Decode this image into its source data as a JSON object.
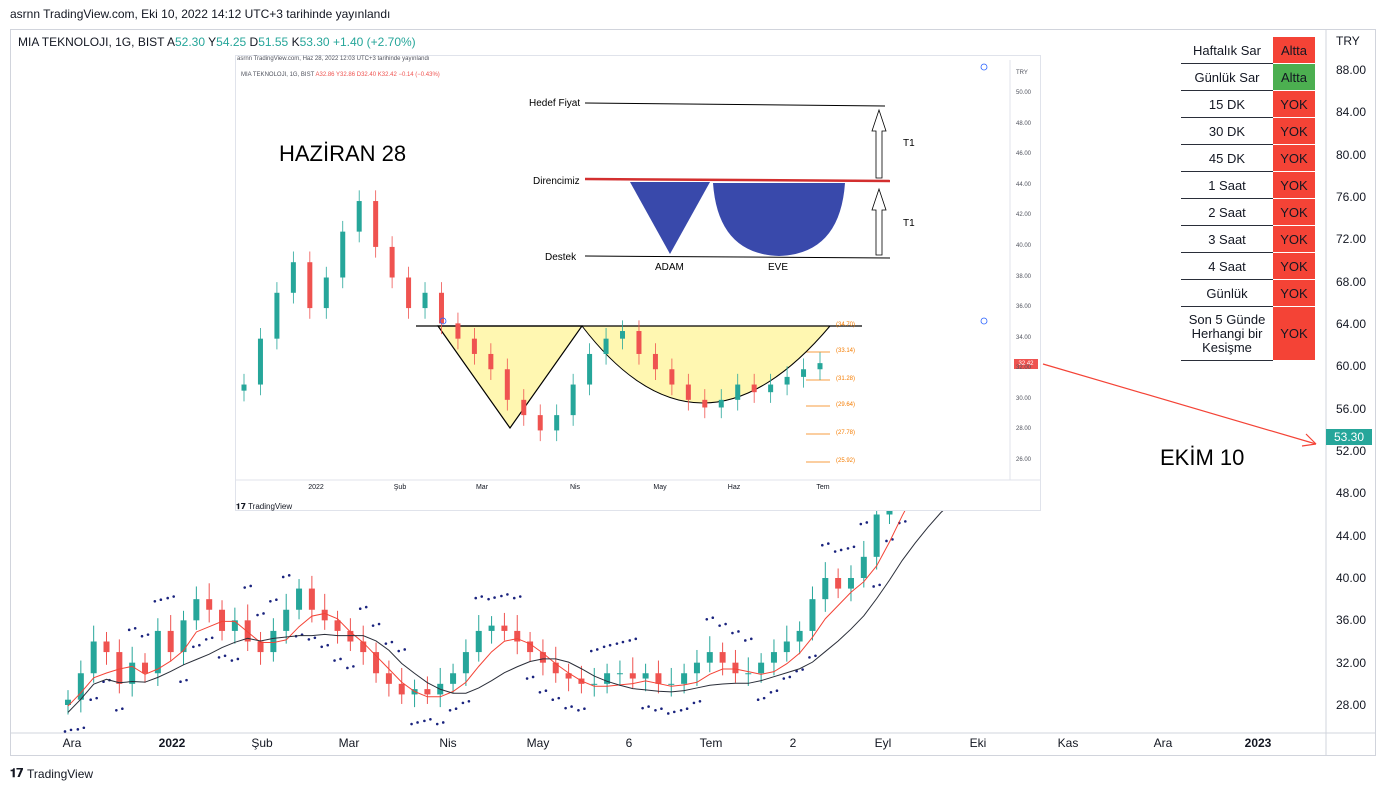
{
  "header": {
    "published": "asrnn TradingView.com, Eki 10, 2022 14:12 UTC+3 tarihinde yayınlandı"
  },
  "symbol": {
    "name": "MIA TEKNOLOJI, 1G, BIST",
    "a_label": "A",
    "a": "52.30",
    "y_label": "Y",
    "y": "54.25",
    "d_label": "D",
    "d": "51.55",
    "k_label": "K",
    "k": "53.30",
    "change": "+1.40 (+2.70%)"
  },
  "currency": "TRY",
  "last_price": "53.30",
  "footer": {
    "brand": "TradingView"
  },
  "colors": {
    "up": "#26a69a",
    "down": "#ef5350",
    "red": "#f44336",
    "green": "#4caf50",
    "accent": "#ef5350",
    "sar": "#1a237e"
  },
  "status_table": [
    {
      "name": "Haftalık Sar",
      "value": "Altta",
      "color": "#f44336"
    },
    {
      "name": "Günlük Sar",
      "value": "Altta",
      "color": "#4caf50"
    },
    {
      "name": "15 DK",
      "value": "YOK",
      "color": "#f44336"
    },
    {
      "name": "30 DK",
      "value": "YOK",
      "color": "#f44336"
    },
    {
      "name": "45 DK",
      "value": "YOK",
      "color": "#f44336"
    },
    {
      "name": "1 Saat",
      "value": "YOK",
      "color": "#f44336"
    },
    {
      "name": "2 Saat",
      "value": "YOK",
      "color": "#f44336"
    },
    {
      "name": "3 Saat",
      "value": "YOK",
      "color": "#f44336"
    },
    {
      "name": "4 Saat",
      "value": "YOK",
      "color": "#f44336"
    },
    {
      "name": "Günlük",
      "value": "YOK",
      "color": "#f44336"
    },
    {
      "name": "Son 5 Günde Herhangi bir Kesişme",
      "value": "YOK",
      "color": "#f44336"
    }
  ],
  "annotations": {
    "haziran": "HAZİRAN 28",
    "ekim": "EKİM 10"
  },
  "inset": {
    "published": "asrnn TradingView.com, Haz 28, 2022 12:03 UTC+3 tarihinde yayınlandı",
    "symbol": "MIA TEKNOLOJI, 1G, BIST",
    "ohlc": "A32.86 Y32.86 D32.40 K32.42 −0.14 (−0.43%)",
    "currency": "TRY",
    "last_price": "32.42",
    "brand": "TradingView",
    "labels": {
      "hedef": "Hedef Fiyat",
      "direnc": "Direncimiz",
      "destek": "Destek",
      "adam": "ADAM",
      "eve": "EVE",
      "t1a": "T1",
      "t1b": "T1"
    },
    "fib_levels": [
      "(34.70)",
      "(33.14)",
      "(31.28)",
      "(29.64)",
      "(27.78)",
      "(25.92)"
    ]
  },
  "chart_data": [
    {
      "type": "candlestick",
      "title": "MIA TEKNOLOJI, 1G, BIST",
      "x_ticks": [
        "Ara",
        "2022",
        "Şub",
        "Mar",
        "Nis",
        "May",
        "6",
        "Tem",
        "2",
        "Eyl",
        "Eki",
        "Kas",
        "Ara",
        "2023"
      ],
      "y_ticks": [
        "88.00",
        "84.00",
        "80.00",
        "76.00",
        "72.00",
        "68.00",
        "64.00",
        "60.00",
        "56.00",
        "52.00",
        "48.00",
        "44.00",
        "40.00",
        "36.00",
        "32.00",
        "28.00"
      ],
      "ylim": [
        26,
        90
      ],
      "series": [
        {
          "name": "Close",
          "values": [
            28.5,
            31,
            34,
            33,
            30,
            32,
            31,
            35,
            33,
            36,
            38,
            37,
            35,
            36,
            34,
            33,
            35,
            37,
            39,
            37,
            36,
            35,
            34,
            33,
            31,
            30,
            29,
            29.5,
            29,
            30,
            31,
            33,
            35,
            35.5,
            35,
            34,
            33,
            32,
            31,
            30.5,
            30,
            30,
            31,
            31,
            30.5,
            31,
            30,
            30,
            31,
            32,
            33,
            32,
            31,
            31,
            32,
            33,
            34,
            35,
            38,
            40,
            39,
            40,
            42,
            46,
            48,
            50,
            51,
            52,
            50,
            49,
            48,
            50,
            51,
            53.3
          ]
        }
      ],
      "series_values_note": "",
      "last": 53.3
    },
    {
      "type": "candlestick",
      "title": "MIA TEKNOLOJI, 1G, BIST",
      "x_ticks": [
        "2022",
        "Şub",
        "Mar",
        "Nis",
        "May",
        "Haz",
        "Tem"
      ],
      "y_ticks": [
        "50.00",
        "48.00",
        "46.00",
        "44.00",
        "42.00",
        "40.00",
        "38.00",
        "36.00",
        "34.00",
        "32.00",
        "30.00",
        "28.00",
        "26.00"
      ],
      "ylim": [
        25,
        51
      ],
      "series": [
        {
          "name": "Close",
          "values": [
            31,
            34,
            37,
            39,
            36,
            38,
            41,
            43,
            40,
            38,
            36,
            37,
            35,
            34,
            33,
            32,
            30,
            29,
            28,
            29,
            31,
            33,
            34,
            34.5,
            33,
            32,
            31,
            30,
            29.5,
            30,
            31,
            30.5,
            31,
            31.5,
            32,
            32.4
          ]
        }
      ],
      "last": 32.42
    }
  ]
}
